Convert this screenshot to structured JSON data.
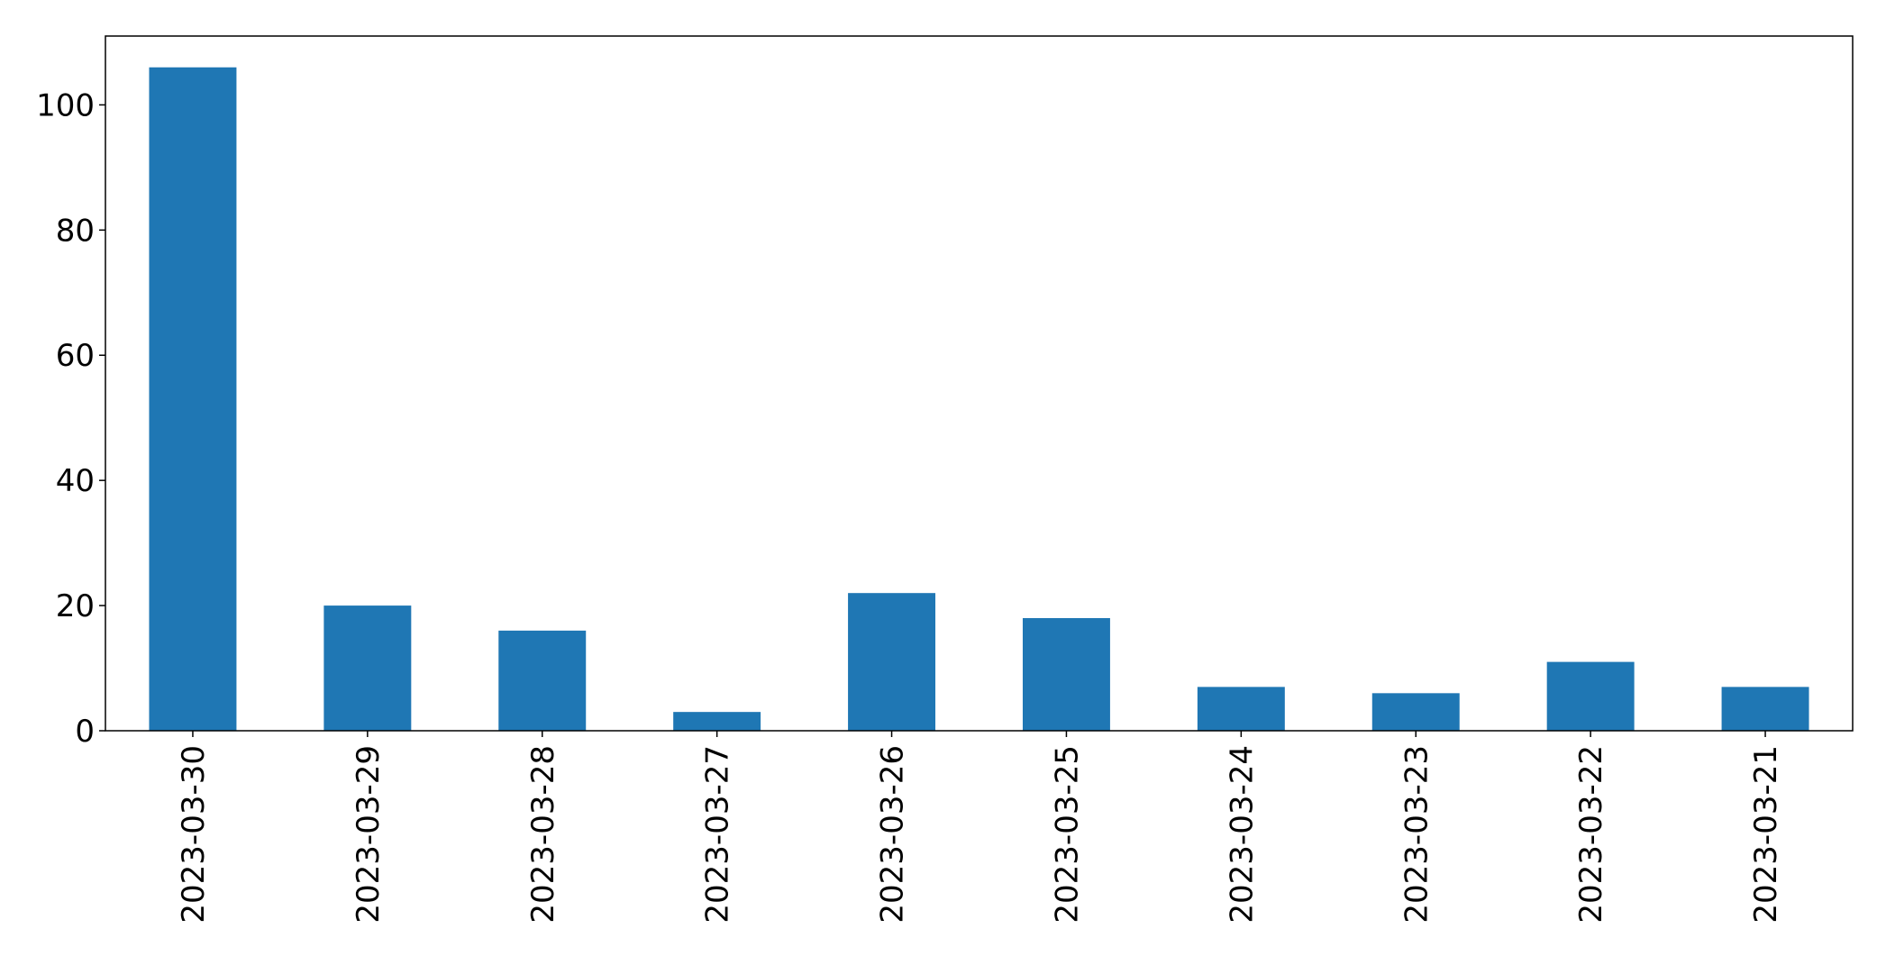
{
  "chart_data": {
    "type": "bar",
    "categories": [
      "2023-03-30",
      "2023-03-29",
      "2023-03-28",
      "2023-03-27",
      "2023-03-26",
      "2023-03-25",
      "2023-03-24",
      "2023-03-23",
      "2023-03-22",
      "2023-03-21"
    ],
    "values": [
      106,
      20,
      16,
      3,
      22,
      18,
      7,
      6,
      11,
      7
    ],
    "title": "",
    "xlabel": "",
    "ylabel": "",
    "ylim": [
      0,
      111
    ],
    "yticks": [
      0,
      20,
      40,
      60,
      80,
      100
    ],
    "grid": false,
    "bar_color": "#1f77b4",
    "x_tick_rotation": 90
  }
}
